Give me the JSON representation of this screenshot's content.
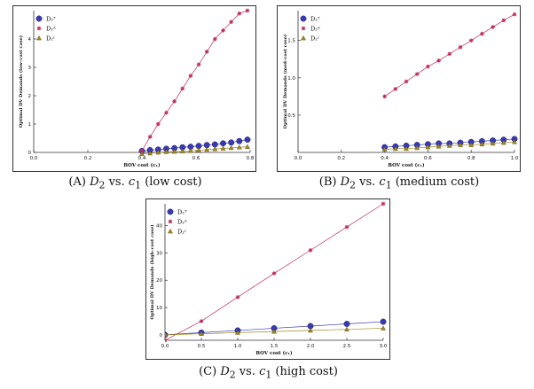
{
  "chart_data": [
    {
      "type": "scatter",
      "panel_label": "(A)",
      "caption_var": "D",
      "caption_sub": "2",
      "caption_vs": "vs.",
      "caption_c": "c",
      "caption_c_sub": "1",
      "caption_case": "(low cost)",
      "xlabel": "BOV cost (c₁)",
      "ylabel": "Optimal DV Demands (low–cost case)",
      "xlim": [
        0.0,
        0.8
      ],
      "ylim": [
        0.0,
        5.0
      ],
      "xticks": [
        "0.0",
        "0.2",
        "0.4",
        "0.6",
        "0.8"
      ],
      "xtick_values": [
        0.0,
        0.2,
        0.4,
        0.6,
        0.8
      ],
      "yticks": [
        "0",
        "1",
        "2",
        "3",
        "4"
      ],
      "ytick_values": [
        0,
        1,
        2,
        3,
        4
      ],
      "legend": [
        "D₂ᵀ",
        "D₂ᴬ",
        "D₂ᶜ"
      ],
      "series": [
        {
          "name": "D2T",
          "color": "#3a3ab0",
          "marker": "circle",
          "x": [
            0.4,
            0.43,
            0.46,
            0.49,
            0.52,
            0.55,
            0.58,
            0.61,
            0.64,
            0.67,
            0.7,
            0.73,
            0.76,
            0.79
          ],
          "y": [
            0.05,
            0.08,
            0.1,
            0.13,
            0.15,
            0.18,
            0.2,
            0.23,
            0.26,
            0.28,
            0.32,
            0.35,
            0.4,
            0.45
          ]
        },
        {
          "name": "D2A",
          "color": "#c03060",
          "marker": "star",
          "x": [
            0.4,
            0.43,
            0.46,
            0.49,
            0.52,
            0.55,
            0.58,
            0.61,
            0.64,
            0.67,
            0.7,
            0.73,
            0.76,
            0.79
          ],
          "y": [
            0.05,
            0.55,
            1.0,
            1.4,
            1.8,
            2.25,
            2.7,
            3.1,
            3.55,
            4.0,
            4.3,
            4.6,
            4.9,
            5.0
          ]
        },
        {
          "name": "D2C",
          "color": "#a08a20",
          "marker": "triangle",
          "x": [
            0.4,
            0.43,
            0.46,
            0.49,
            0.52,
            0.55,
            0.58,
            0.61,
            0.64,
            0.67,
            0.7,
            0.73,
            0.76,
            0.79
          ],
          "y": [
            -0.05,
            -0.03,
            0.0,
            0.02,
            0.03,
            0.04,
            0.06,
            0.08,
            0.1,
            0.12,
            0.14,
            0.16,
            0.18,
            0.2
          ]
        }
      ]
    },
    {
      "type": "scatter",
      "panel_label": "(B)",
      "caption_var": "D",
      "caption_sub": "2",
      "caption_vs": "vs.",
      "caption_c": "c",
      "caption_c_sub": "1",
      "caption_case": "(medium cost)",
      "xlabel": "BOV cost (c₁)",
      "ylabel": "Optimal DV Demands (med–cost case)",
      "xlim": [
        0.0,
        1.0
      ],
      "ylim": [
        0.0,
        1.9
      ],
      "xticks": [
        "0.0",
        "0.2",
        "0.4",
        "0.6",
        "0.8",
        "1.0"
      ],
      "xtick_values": [
        0.0,
        0.2,
        0.4,
        0.6,
        0.8,
        1.0
      ],
      "yticks": [
        "0.5",
        "1.0",
        "1.5"
      ],
      "ytick_values": [
        0.5,
        1.0,
        1.5
      ],
      "legend": [
        "D₂ᵀ",
        "D₂ᴬ",
        "D₂ᶜ"
      ],
      "series": [
        {
          "name": "D2T",
          "color": "#3a3ab0",
          "marker": "circle",
          "x": [
            0.4,
            0.45,
            0.5,
            0.55,
            0.6,
            0.65,
            0.7,
            0.75,
            0.8,
            0.85,
            0.9,
            0.95,
            1.0
          ],
          "y": [
            0.07,
            0.08,
            0.09,
            0.1,
            0.11,
            0.12,
            0.12,
            0.13,
            0.14,
            0.15,
            0.16,
            0.17,
            0.18
          ]
        },
        {
          "name": "D2A",
          "color": "#c03060",
          "marker": "star",
          "x": [
            0.4,
            0.45,
            0.5,
            0.55,
            0.6,
            0.65,
            0.7,
            0.75,
            0.8,
            0.85,
            0.9,
            0.95,
            1.0
          ],
          "y": [
            0.75,
            0.85,
            0.95,
            1.05,
            1.15,
            1.23,
            1.32,
            1.41,
            1.5,
            1.59,
            1.68,
            1.77,
            1.85
          ]
        },
        {
          "name": "D2C",
          "color": "#a08a20",
          "marker": "triangle",
          "x": [
            0.4,
            0.45,
            0.5,
            0.55,
            0.6,
            0.65,
            0.7,
            0.75,
            0.8,
            0.85,
            0.9,
            0.95,
            1.0
          ],
          "y": [
            0.04,
            0.05,
            0.05,
            0.06,
            0.07,
            0.08,
            0.09,
            0.1,
            0.1,
            0.11,
            0.12,
            0.13,
            0.14
          ]
        }
      ]
    },
    {
      "type": "scatter",
      "panel_label": "(C)",
      "caption_var": "D",
      "caption_sub": "2",
      "caption_vs": "vs.",
      "caption_c": "c",
      "caption_c_sub": "1",
      "caption_case": "(high cost)",
      "xlabel": "BOV cost (c₁)",
      "ylabel": "Optimal DV Demands (high–cost case)",
      "xlim": [
        0.0,
        3.0
      ],
      "ylim": [
        -2.0,
        48.0
      ],
      "xticks": [
        "0.0",
        "0.5",
        "1.0",
        "1.5",
        "2.0",
        "2.5",
        "3.0"
      ],
      "xtick_values": [
        0.0,
        0.5,
        1.0,
        1.5,
        2.0,
        2.5,
        3.0
      ],
      "yticks": [
        "0",
        "10",
        "20",
        "30",
        "40"
      ],
      "ytick_values": [
        0,
        10,
        20,
        30,
        40
      ],
      "legend": [
        "D₂ᵀ",
        "D₂ᴬ",
        "D₂ᶜ"
      ],
      "series": [
        {
          "name": "D2T",
          "color": "#3a3ab0",
          "marker": "circle",
          "x": [
            0.0,
            0.5,
            1.0,
            1.5,
            2.0,
            2.5,
            3.0
          ],
          "y": [
            0.0,
            0.8,
            1.6,
            2.4,
            3.2,
            4.0,
            4.8
          ]
        },
        {
          "name": "D2A",
          "color": "#c03060",
          "marker": "star",
          "x": [
            0.0,
            0.5,
            1.0,
            1.5,
            2.0,
            2.5,
            3.0
          ],
          "y": [
            -2.0,
            5.0,
            13.8,
            22.5,
            31.0,
            39.5,
            48.0
          ]
        },
        {
          "name": "D2C",
          "color": "#a08a20",
          "marker": "triangle",
          "x": [
            0.0,
            0.5,
            1.0,
            1.5,
            2.0,
            2.5,
            3.0
          ],
          "y": [
            0.0,
            0.4,
            0.8,
            1.2,
            1.6,
            2.0,
            2.4
          ]
        }
      ]
    }
  ]
}
